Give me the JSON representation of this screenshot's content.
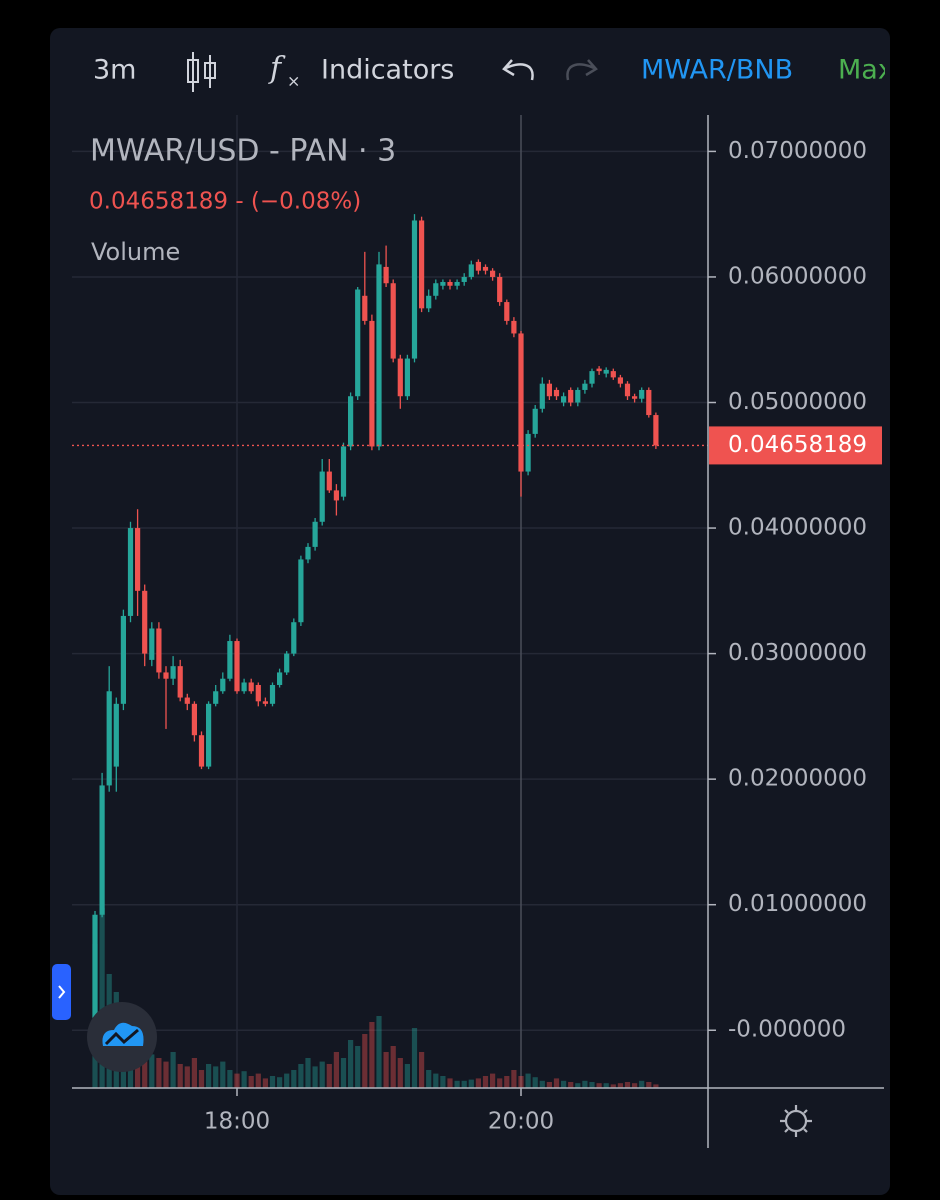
{
  "toolbar": {
    "interval": "3m",
    "indicators": "Indicators",
    "symbol": "MWAR/BNB",
    "more": "Max"
  },
  "legend": {
    "title": "MWAR/USD - PAN · 3",
    "quote": "0.04658189  -  (−0.08%)",
    "volume": "Volume"
  },
  "chart_data": {
    "type": "candlestick",
    "categories": [
      null,
      null,
      null,
      null,
      null,
      null,
      null,
      null,
      null,
      null,
      null,
      null,
      null,
      null,
      null,
      null,
      null,
      null,
      null,
      null,
      "18:00",
      null,
      null,
      null,
      null,
      null,
      null,
      null,
      null,
      null,
      null,
      null,
      null,
      null,
      null,
      null,
      null,
      null,
      null,
      null,
      null,
      null,
      null,
      null,
      null,
      null,
      null,
      null,
      null,
      null,
      null,
      null,
      null,
      null,
      null,
      null,
      null,
      null,
      null,
      null,
      "20:00",
      null,
      null,
      null,
      null,
      null,
      null,
      null,
      null,
      null,
      null,
      null,
      null,
      null,
      null,
      null,
      null,
      null,
      null,
      null
    ],
    "open": [
      0.001,
      0.0092,
      0.0195,
      0.021,
      0.026,
      0.033,
      0.04,
      0.035,
      0.0295,
      0.032,
      0.0285,
      0.028,
      0.029,
      0.0265,
      0.026,
      0.0235,
      0.021,
      0.026,
      0.027,
      0.028,
      0.031,
      0.027,
      0.0277,
      0.0275,
      0.0262,
      0.026,
      0.0275,
      0.0285,
      0.03,
      0.0325,
      0.0375,
      0.0385,
      0.0405,
      0.0445,
      0.043,
      0.0425,
      0.0465,
      0.0505,
      0.0585,
      0.0565,
      0.0465,
      0.0608,
      0.0595,
      0.0535,
      0.0505,
      0.0535,
      0.0645,
      0.0575,
      0.0585,
      0.0593,
      0.0596,
      0.0593,
      0.0596,
      0.06,
      0.0612,
      0.0608,
      0.0605,
      0.06,
      0.058,
      0.0565,
      0.0555,
      0.0445,
      0.0475,
      0.0495,
      0.0515,
      0.051,
      0.05,
      0.051,
      0.05,
      0.051,
      0.0515,
      0.0527,
      0.0523,
      0.0525,
      0.052,
      0.0515,
      0.0505,
      0.0503,
      0.051,
      0.049
    ],
    "high": [
      0.0095,
      0.0205,
      0.029,
      0.0265,
      0.0335,
      0.0405,
      0.0415,
      0.0355,
      0.0325,
      0.0325,
      0.029,
      0.0298,
      0.0295,
      0.0268,
      0.0262,
      0.0238,
      0.0262,
      0.0275,
      0.0285,
      0.0315,
      0.0312,
      0.028,
      0.028,
      0.0277,
      0.0265,
      0.0277,
      0.0288,
      0.0302,
      0.0328,
      0.0378,
      0.0388,
      0.0408,
      0.0455,
      0.0455,
      0.0435,
      0.0468,
      0.0508,
      0.0592,
      0.062,
      0.057,
      0.062,
      0.0625,
      0.0598,
      0.0538,
      0.0538,
      0.065,
      0.0648,
      0.059,
      0.0598,
      0.0598,
      0.0598,
      0.0598,
      0.0603,
      0.0613,
      0.0614,
      0.061,
      0.0607,
      0.0603,
      0.0582,
      0.0568,
      0.0557,
      0.0478,
      0.0498,
      0.052,
      0.0518,
      0.0512,
      0.0508,
      0.0512,
      0.0512,
      0.0518,
      0.0527,
      0.0529,
      0.0528,
      0.0527,
      0.0522,
      0.0517,
      0.0507,
      0.0512,
      0.0512,
      0.0492
    ],
    "low": [
      0.0005,
      0.009,
      0.019,
      0.019,
      0.0255,
      0.0325,
      0.033,
      0.029,
      0.029,
      0.028,
      0.024,
      0.0275,
      0.0262,
      0.0255,
      0.023,
      0.0208,
      0.0208,
      0.0258,
      0.0268,
      0.0278,
      0.0268,
      0.0268,
      0.0268,
      0.0258,
      0.0258,
      0.0258,
      0.0273,
      0.0283,
      0.0298,
      0.0322,
      0.0372,
      0.0382,
      0.0402,
      0.0428,
      0.041,
      0.0422,
      0.0462,
      0.0502,
      0.0562,
      0.0462,
      0.0462,
      0.0592,
      0.0532,
      0.0495,
      0.0502,
      0.0532,
      0.0572,
      0.0572,
      0.0582,
      0.059,
      0.059,
      0.059,
      0.0593,
      0.0598,
      0.0602,
      0.0602,
      0.0597,
      0.0577,
      0.0562,
      0.0552,
      0.0425,
      0.0442,
      0.0472,
      0.0492,
      0.0502,
      0.0502,
      0.0497,
      0.0497,
      0.0497,
      0.0507,
      0.0512,
      0.0522,
      0.052,
      0.0518,
      0.0512,
      0.0502,
      0.05,
      0.05,
      0.0488,
      0.0463
    ],
    "close": [
      0.0092,
      0.0195,
      0.027,
      0.026,
      0.033,
      0.04,
      0.035,
      0.03,
      0.032,
      0.0285,
      0.028,
      0.029,
      0.0265,
      0.026,
      0.0235,
      0.021,
      0.026,
      0.027,
      0.028,
      0.031,
      0.027,
      0.0277,
      0.027,
      0.0262,
      0.026,
      0.0275,
      0.0285,
      0.03,
      0.0325,
      0.0375,
      0.0385,
      0.0405,
      0.0445,
      0.043,
      0.0422,
      0.0465,
      0.0505,
      0.059,
      0.0565,
      0.0465,
      0.061,
      0.0595,
      0.0535,
      0.0505,
      0.0535,
      0.0645,
      0.0575,
      0.0585,
      0.0595,
      0.0596,
      0.0593,
      0.0596,
      0.06,
      0.061,
      0.0605,
      0.0605,
      0.06,
      0.058,
      0.0565,
      0.0555,
      0.0445,
      0.0475,
      0.0495,
      0.0515,
      0.0505,
      0.0505,
      0.0505,
      0.05,
      0.051,
      0.0515,
      0.0525,
      0.0525,
      0.0526,
      0.052,
      0.0515,
      0.0505,
      0.0503,
      0.051,
      0.049,
      0.04658189
    ],
    "volume": [
      120,
      150,
      95,
      80,
      45,
      40,
      35,
      30,
      28,
      25,
      22,
      30,
      20,
      18,
      25,
      15,
      20,
      18,
      22,
      15,
      12,
      14,
      10,
      12,
      8,
      10,
      9,
      12,
      15,
      20,
      25,
      18,
      22,
      20,
      30,
      25,
      40,
      35,
      45,
      55,
      60,
      30,
      35,
      25,
      20,
      50,
      30,
      15,
      12,
      10,
      8,
      6,
      6,
      7,
      8,
      10,
      12,
      8,
      10,
      15,
      10,
      12,
      9,
      6,
      5,
      8,
      6,
      5,
      4,
      6,
      5,
      4,
      4,
      3,
      4,
      5,
      4,
      6,
      5,
      3
    ],
    "up_color": "#26a69a",
    "down_color": "#ef5350",
    "last_price": 0.04658189,
    "ylim": [
      -0.0046,
      0.0729
    ],
    "yticks": [
      {
        "value": 0.07,
        "label": "0.07000000"
      },
      {
        "value": 0.06,
        "label": "0.06000000"
      },
      {
        "value": 0.05,
        "label": "0.05000000"
      },
      {
        "value": 0.04,
        "label": "0.04000000"
      },
      {
        "value": 0.03,
        "label": "0.03000000"
      },
      {
        "value": 0.02,
        "label": "0.02000000"
      },
      {
        "value": 0.01,
        "label": "0.01000000"
      },
      {
        "value": 0,
        "label": "-0.000000"
      }
    ],
    "grid": true
  }
}
